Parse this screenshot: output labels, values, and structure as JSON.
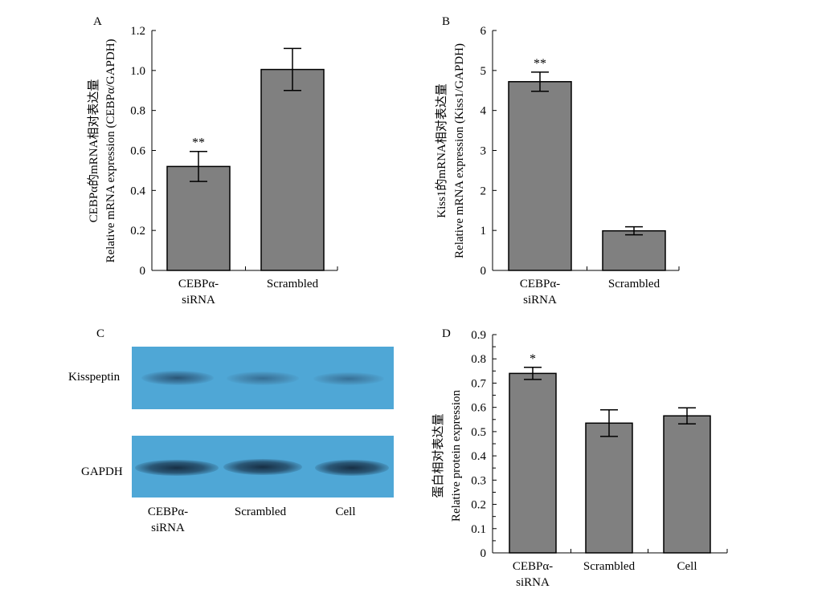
{
  "panels": {
    "A": "A",
    "B": "B",
    "C": "C",
    "D": "D"
  },
  "blot": {
    "rows": [
      "Kisspeptin",
      "GAPDH"
    ],
    "lanes": [
      "CEBPα-\nsiRNA",
      "Scrambled",
      "Cell"
    ],
    "strip_color": "#4fa7d6"
  },
  "chart_data": [
    {
      "type": "bar",
      "panel": "A",
      "categories": [
        "CEBPα-\nsiRNA",
        "Scrambled"
      ],
      "values": [
        0.52,
        1.005
      ],
      "errors": [
        0.075,
        0.105
      ],
      "significance": [
        "**",
        ""
      ],
      "ylabel_cn": "CEBPα的mRNA相对表达量",
      "ylabel_en": "Relative mRNA expression (CEBPα/GAPDH)",
      "ylim": [
        0,
        1.2
      ],
      "yticks": [
        0,
        0.2,
        0.4,
        0.6,
        0.8,
        1.0,
        1.2
      ],
      "ytick_labels": [
        "0",
        "0.2",
        "0.4",
        "0.6",
        "0.8",
        "1.0",
        "1.2"
      ],
      "bar_color": "#808080",
      "grid": false
    },
    {
      "type": "bar",
      "panel": "B",
      "categories": [
        "CEBPα-\nsiRNA",
        "Scrambled"
      ],
      "values": [
        4.72,
        0.99
      ],
      "errors": [
        0.24,
        0.1
      ],
      "significance": [
        "**",
        ""
      ],
      "ylabel_cn": "Kiss1的mRNA相对表达量",
      "ylabel_en": "Relative mRNA expression (Kiss1/GAPDH)",
      "ylim": [
        0,
        6
      ],
      "yticks": [
        0,
        1,
        2,
        3,
        4,
        5,
        6
      ],
      "ytick_labels": [
        "0",
        "1",
        "2",
        "3",
        "4",
        "5",
        "6"
      ],
      "bar_color": "#808080",
      "grid": false
    },
    {
      "type": "bar",
      "panel": "D",
      "categories": [
        "CEBPα-\nsiRNA",
        "Scrambled",
        "Cell"
      ],
      "values": [
        0.74,
        0.535,
        0.565
      ],
      "errors": [
        0.025,
        0.055,
        0.033
      ],
      "significance": [
        "*",
        "",
        ""
      ],
      "ylabel_cn": "蛋白相对表达量",
      "ylabel_en": "Relative protein expression",
      "ylim": [
        0,
        0.9
      ],
      "yticks": [
        0,
        0.1,
        0.2,
        0.3,
        0.4,
        0.5,
        0.6,
        0.7,
        0.8,
        0.9
      ],
      "ytick_labels": [
        "0",
        "0.1",
        "0.2",
        "0.3",
        "0.4",
        "0.5",
        "0.6",
        "0.7",
        "0.8",
        "0.9"
      ],
      "bar_color": "#808080",
      "grid": false
    }
  ]
}
